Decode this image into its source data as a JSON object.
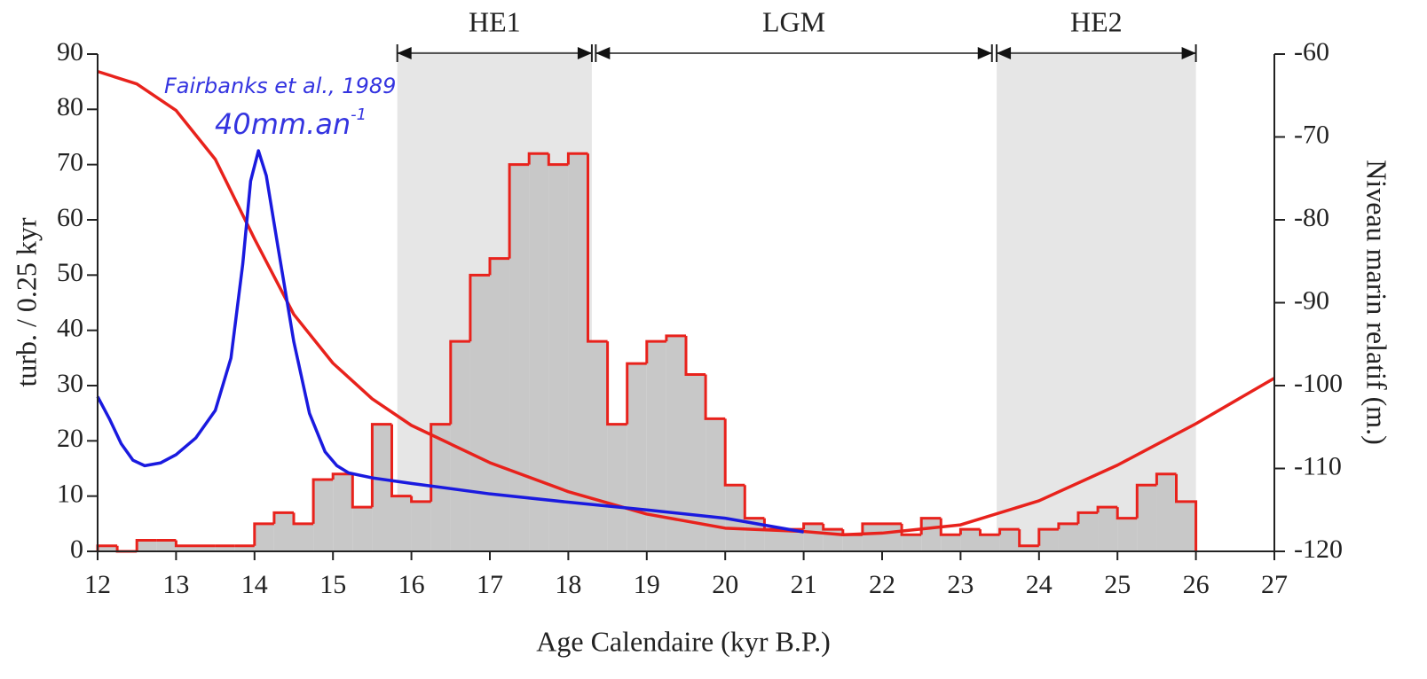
{
  "chart_data": {
    "type": "histogram",
    "x_label": "Age Calendaire (kyr B.P.)",
    "y_label": "turb. / 0.25 kyr",
    "y2_label": "Niveau marin relatif (m.)",
    "xlim": [
      12,
      27
    ],
    "xticks": [
      12,
      13,
      14,
      15,
      16,
      17,
      18,
      19,
      20,
      21,
      22,
      23,
      24,
      25,
      26,
      27
    ],
    "ylim": [
      0,
      90
    ],
    "yticks": [
      0,
      10,
      20,
      30,
      40,
      50,
      60,
      70,
      80,
      90
    ],
    "y2lim": [
      -120,
      -60
    ],
    "y2ticks": [
      -60,
      -70,
      -80,
      -90,
      -100,
      -110,
      -120
    ],
    "bins": [
      12,
      12.25,
      12.5,
      12.75,
      13,
      13.25,
      13.5,
      13.75,
      14,
      14.25,
      14.5,
      14.75,
      15,
      15.25,
      15.5,
      15.75,
      16,
      16.25,
      16.5,
      16.75,
      17,
      17.25,
      17.5,
      17.75,
      18,
      18.25,
      18.5,
      18.75,
      19,
      19.25,
      19.5,
      19.75,
      20,
      20.25,
      20.5,
      20.75,
      21,
      21.25,
      21.5,
      21.75,
      22,
      22.25,
      22.5,
      22.75,
      23,
      23.25,
      23.5,
      23.75,
      24,
      24.25,
      24.5,
      24.75,
      25,
      25.25,
      25.5,
      25.75,
      26
    ],
    "counts": [
      1,
      0,
      2,
      2,
      1,
      1,
      1,
      1,
      5,
      7,
      5,
      13,
      14,
      8,
      23,
      10,
      9,
      23,
      38,
      50,
      53,
      70,
      72,
      70,
      72,
      38,
      23,
      34,
      38,
      39,
      32,
      24,
      12,
      6,
      4,
      4,
      5,
      4,
      3,
      5,
      5,
      3,
      6,
      3,
      4,
      3,
      4,
      1,
      4,
      5,
      7,
      8,
      6,
      12,
      14,
      9
    ],
    "color": "#c8c8c8",
    "edge_color": "#e8221c",
    "lines": [
      {
        "color": "#e8221c",
        "axis": "y2",
        "x": [
          12,
          12.5,
          13,
          13.5,
          14,
          14.5,
          15,
          15.5,
          16,
          17,
          18,
          19,
          20,
          21,
          21.5,
          22,
          23,
          24,
          25,
          26,
          27
        ],
        "values": [
          -62.1,
          -63.6,
          -66.8,
          -72.7,
          -82.3,
          -91.4,
          -97.3,
          -101.6,
          -104.8,
          -109.3,
          -112.8,
          -115.5,
          -117.2,
          -117.6,
          -118,
          -117.8,
          -116.8,
          -113.9,
          -109.6,
          -104.6,
          -99.1
        ]
      },
      {
        "color": "#1a1adf",
        "axis": "y",
        "x": [
          12,
          12.15,
          12.3,
          12.45,
          12.6,
          12.8,
          13,
          13.25,
          13.5,
          13.7,
          13.85,
          13.95,
          14.05,
          14.15,
          14.3,
          14.5,
          14.7,
          14.9,
          15.05,
          15.2,
          15.5,
          16,
          17,
          18,
          19,
          20,
          21
        ],
        "values": [
          28,
          24,
          19.5,
          16.5,
          15.5,
          16,
          17.5,
          20.5,
          25.5,
          35,
          52,
          67,
          72.5,
          68,
          55,
          38,
          25,
          18,
          15.5,
          14.2,
          13.3,
          12.3,
          10.4,
          8.9,
          7.5,
          6,
          3.5
        ]
      }
    ],
    "periods": [
      {
        "label": "HE1",
        "start": 15.82,
        "end": 18.3,
        "shaded": true
      },
      {
        "label": "LGM",
        "start": 18.35,
        "end": 23.4,
        "shaded": false
      },
      {
        "label": "HE2",
        "start": 23.46,
        "end": 26,
        "shaded": true
      }
    ],
    "shade_color": "#e6e6e6",
    "annotations": [
      {
        "text": "Fairbanks et al., 1989"
      },
      {
        "text": "40mm.an",
        "sup": "-1"
      }
    ]
  }
}
